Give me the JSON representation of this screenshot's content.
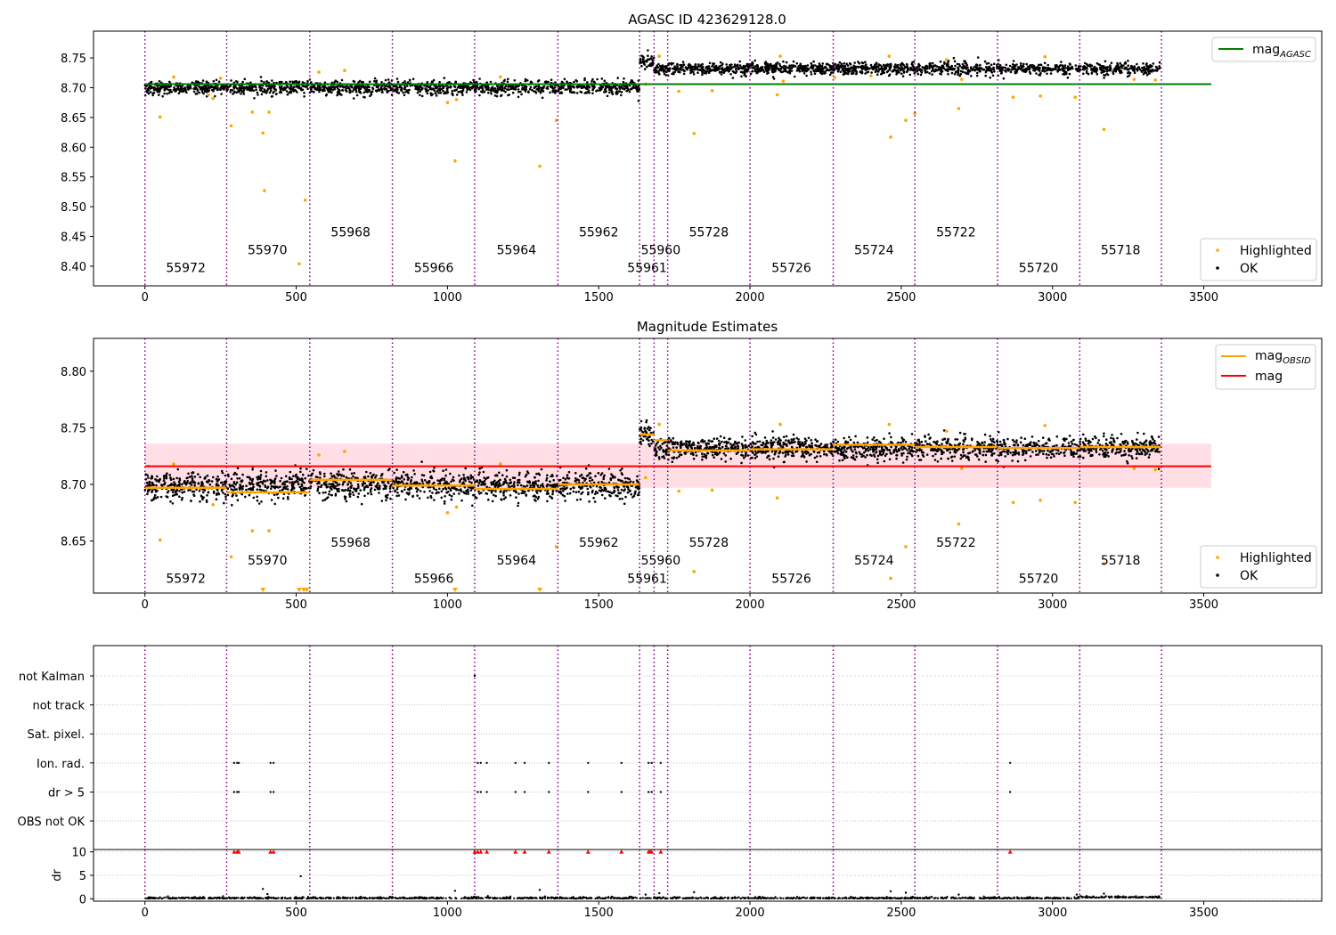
{
  "chart_data": [
    {
      "type": "scatter",
      "title": "AGASC ID 423629128.0",
      "xlim": [
        -170,
        3890
      ],
      "ylim": [
        8.367,
        8.795
      ],
      "x_ticks": [
        0,
        500,
        1000,
        1500,
        2000,
        2500,
        3000,
        3500
      ],
      "y_ticks": [
        8.4,
        8.45,
        8.5,
        8.55,
        8.6,
        8.65,
        8.7,
        8.75
      ],
      "grid": false,
      "legend_top": {
        "position": "top-right",
        "entries": [
          {
            "name": "mag",
            "subscript": "AGASC",
            "color": "#008000"
          }
        ]
      },
      "legend_bottom": {
        "position": "bottom-right",
        "entries": [
          {
            "name": "Highlighted",
            "color": "#FFA500"
          },
          {
            "name": "OK",
            "color": "#000000"
          }
        ]
      },
      "mag_agasc": {
        "value": 8.706,
        "x_range": [
          0,
          3525
        ],
        "color": "#008000"
      },
      "obsid_boundaries": [
        0,
        270,
        545,
        818,
        1090,
        1365,
        1635,
        1683,
        1728,
        2000,
        2275,
        2545,
        2818,
        3090,
        3360
      ],
      "obsids": [
        {
          "label": "55972",
          "x": 135,
          "y": 8.39,
          "level": 3
        },
        {
          "label": "55970",
          "x": 405,
          "y": 8.42,
          "level": 2
        },
        {
          "label": "55968",
          "x": 680,
          "y": 8.45,
          "level": 1
        },
        {
          "label": "55966",
          "x": 955,
          "y": 8.39,
          "level": 3
        },
        {
          "label": "55964",
          "x": 1228,
          "y": 8.42,
          "level": 2
        },
        {
          "label": "55962",
          "x": 1500,
          "y": 8.45,
          "level": 1
        },
        {
          "label": "55961",
          "x": 1660,
          "y": 8.39,
          "level": 3
        },
        {
          "label": "55960",
          "x": 1705,
          "y": 8.42,
          "level": 2
        },
        {
          "label": "55728",
          "x": 1864,
          "y": 8.45,
          "level": 1
        },
        {
          "label": "55726",
          "x": 2137,
          "y": 8.39,
          "level": 3
        },
        {
          "label": "55724",
          "x": 2410,
          "y": 8.42,
          "level": 2
        },
        {
          "label": "55722",
          "x": 2681,
          "y": 8.45,
          "level": 1
        },
        {
          "label": "55720",
          "x": 2954,
          "y": 8.39,
          "level": 3
        },
        {
          "label": "55718",
          "x": 3225,
          "y": 8.42,
          "level": 2
        }
      ],
      "segment_levels": [
        {
          "x_range": [
            0,
            1635
          ],
          "mean": 8.7,
          "scatter": 0.006
        },
        {
          "x_range": [
            1635,
            1683
          ],
          "mean": 8.744,
          "scatter": 0.006
        },
        {
          "x_range": [
            1683,
            3355
          ],
          "mean": 8.732,
          "scatter": 0.005
        }
      ],
      "highlighted_points": [
        [
          50,
          8.651
        ],
        [
          95,
          8.718
        ],
        [
          210,
          8.688
        ],
        [
          225,
          8.682
        ],
        [
          250,
          8.716
        ],
        [
          285,
          8.636
        ],
        [
          355,
          8.659
        ],
        [
          390,
          8.624
        ],
        [
          395,
          8.527
        ],
        [
          410,
          8.659
        ],
        [
          510,
          8.404
        ],
        [
          530,
          8.511
        ],
        [
          575,
          8.726
        ],
        [
          660,
          8.729
        ],
        [
          1000,
          8.675
        ],
        [
          1025,
          8.577
        ],
        [
          1030,
          8.68
        ],
        [
          1175,
          8.718
        ],
        [
          1305,
          8.568
        ],
        [
          1360,
          8.645
        ],
        [
          1655,
          8.706
        ],
        [
          1700,
          8.753
        ],
        [
          1765,
          8.694
        ],
        [
          1815,
          8.623
        ],
        [
          1875,
          8.695
        ],
        [
          2090,
          8.688
        ],
        [
          2100,
          8.753
        ],
        [
          2110,
          8.711
        ],
        [
          2280,
          8.717
        ],
        [
          2400,
          8.72
        ],
        [
          2460,
          8.753
        ],
        [
          2465,
          8.617
        ],
        [
          2515,
          8.645
        ],
        [
          2545,
          8.657
        ],
        [
          2650,
          8.747
        ],
        [
          2690,
          8.665
        ],
        [
          2700,
          8.714
        ],
        [
          2870,
          8.684
        ],
        [
          2960,
          8.686
        ],
        [
          2975,
          8.752
        ],
        [
          3075,
          8.684
        ],
        [
          3170,
          8.63
        ],
        [
          3270,
          8.714
        ],
        [
          3340,
          8.713
        ]
      ]
    },
    {
      "type": "scatter",
      "title": "Magnitude Estimates",
      "xlim": [
        -170,
        3890
      ],
      "ylim": [
        8.604,
        8.829
      ],
      "x_ticks": [
        0,
        500,
        1000,
        1500,
        2000,
        2500,
        3000,
        3500
      ],
      "y_ticks": [
        8.65,
        8.7,
        8.75,
        8.8
      ],
      "grid": false,
      "legend_top": {
        "position": "top-right",
        "entries": [
          {
            "name": "mag",
            "subscript": "OBSID",
            "color": "#FFA500"
          },
          {
            "name": "mag",
            "color": "#FF0000"
          }
        ]
      },
      "legend_bottom": {
        "position": "bottom-right",
        "entries": [
          {
            "name": "Highlighted",
            "color": "#FFA500"
          },
          {
            "name": "OK",
            "color": "#000000"
          }
        ]
      },
      "mag": {
        "value": 8.716,
        "band": [
          8.697,
          8.736
        ],
        "x_range": [
          0,
          3525
        ],
        "color": "#FF0000"
      },
      "mag_obsid": [
        {
          "x_range": [
            0,
            270
          ],
          "value": 8.697
        },
        {
          "x_range": [
            270,
            545
          ],
          "value": 8.693
        },
        {
          "x_range": [
            545,
            818
          ],
          "value": 8.704
        },
        {
          "x_range": [
            818,
            1090
          ],
          "value": 8.699
        },
        {
          "x_range": [
            1090,
            1365
          ],
          "value": 8.696
        },
        {
          "x_range": [
            1365,
            1635
          ],
          "value": 8.7
        },
        {
          "x_range": [
            1635,
            1683
          ],
          "value": 8.744
        },
        {
          "x_range": [
            1683,
            1728
          ],
          "value": 8.739
        },
        {
          "x_range": [
            1728,
            2000
          ],
          "value": 8.73
        },
        {
          "x_range": [
            2000,
            2275
          ],
          "value": 8.731
        },
        {
          "x_range": [
            2275,
            2545
          ],
          "value": 8.735
        },
        {
          "x_range": [
            2545,
            2818
          ],
          "value": 8.733
        },
        {
          "x_range": [
            2818,
            3090
          ],
          "value": 8.732
        },
        {
          "x_range": [
            3090,
            3360
          ],
          "value": 8.733
        }
      ],
      "obsid_boundaries": [
        0,
        270,
        545,
        818,
        1090,
        1365,
        1635,
        1683,
        1728,
        2000,
        2275,
        2545,
        2818,
        3090,
        3360
      ],
      "obsids": [
        {
          "label": "55972",
          "x": 135,
          "y": 8.613
        },
        {
          "label": "55970",
          "x": 405,
          "y": 8.629
        },
        {
          "label": "55968",
          "x": 680,
          "y": 8.645
        },
        {
          "label": "55966",
          "x": 955,
          "y": 8.613
        },
        {
          "label": "55964",
          "x": 1228,
          "y": 8.629
        },
        {
          "label": "55962",
          "x": 1500,
          "y": 8.645
        },
        {
          "label": "55961",
          "x": 1660,
          "y": 8.613
        },
        {
          "label": "55960",
          "x": 1705,
          "y": 8.629
        },
        {
          "label": "55728",
          "x": 1864,
          "y": 8.645
        },
        {
          "label": "55726",
          "x": 2137,
          "y": 8.613
        },
        {
          "label": "55724",
          "x": 2410,
          "y": 8.629
        },
        {
          "label": "55722",
          "x": 2681,
          "y": 8.645
        },
        {
          "label": "55720",
          "x": 2954,
          "y": 8.613
        },
        {
          "label": "55718",
          "x": 3225,
          "y": 8.629
        }
      ],
      "segment_levels": [
        {
          "x_range": [
            0,
            1635
          ],
          "mean": 8.699,
          "scatter": 0.006
        },
        {
          "x_range": [
            1635,
            1683
          ],
          "mean": 8.744,
          "scatter": 0.006
        },
        {
          "x_range": [
            1683,
            3355
          ],
          "mean": 8.732,
          "scatter": 0.005
        }
      ],
      "highlighted_points": [
        [
          50,
          8.651
        ],
        [
          95,
          8.718
        ],
        [
          225,
          8.682
        ],
        [
          285,
          8.636
        ],
        [
          355,
          8.659
        ],
        [
          410,
          8.659
        ],
        [
          575,
          8.726
        ],
        [
          660,
          8.729
        ],
        [
          1000,
          8.675
        ],
        [
          1030,
          8.68
        ],
        [
          1175,
          8.718
        ],
        [
          1360,
          8.645
        ],
        [
          1655,
          8.706
        ],
        [
          1700,
          8.753
        ],
        [
          1765,
          8.694
        ],
        [
          1815,
          8.623
        ],
        [
          1875,
          8.695
        ],
        [
          2090,
          8.688
        ],
        [
          2100,
          8.753
        ],
        [
          2460,
          8.753
        ],
        [
          2465,
          8.617
        ],
        [
          2515,
          8.645
        ],
        [
          2650,
          8.747
        ],
        [
          2690,
          8.665
        ],
        [
          2700,
          8.714
        ],
        [
          2870,
          8.684
        ],
        [
          2960,
          8.686
        ],
        [
          2975,
          8.752
        ],
        [
          3075,
          8.684
        ],
        [
          3170,
          8.63
        ],
        [
          3270,
          8.714
        ],
        [
          3340,
          8.713
        ]
      ],
      "below_range_markers": [
        390,
        510,
        525,
        535,
        1025,
        1305
      ]
    },
    {
      "type": "scatter",
      "title": "",
      "xlim": [
        -170,
        3890
      ],
      "x_ticks": [
        0,
        500,
        1000,
        1500,
        2000,
        2500,
        3000,
        3500
      ],
      "flag_rows": [
        "not Kalman",
        "not track",
        "Sat. pixel.",
        "Ion. rad.",
        "dr > 5",
        "OBS not OK"
      ],
      "dr_ylim": [
        -0.5,
        10.5
      ],
      "dr_ticks": [
        0,
        5,
        10
      ],
      "dr_ylabel": "dr",
      "grid": "dotted",
      "obsid_boundaries": [
        0,
        270,
        545,
        818,
        1090,
        1365,
        1635,
        1683,
        1728,
        2000,
        2275,
        2545,
        2818,
        3090,
        3360
      ],
      "flag_points": [
        {
          "row": "not Kalman",
          "x": [
            1090
          ]
        },
        {
          "row": "Ion. rad.",
          "x": [
            295,
            305,
            310,
            415,
            425,
            1100,
            1110,
            1130,
            1225,
            1255,
            1335,
            1465,
            1575,
            1665,
            1675,
            1705,
            2860
          ]
        },
        {
          "row": "dr > 5",
          "x": [
            295,
            305,
            310,
            415,
            425,
            1100,
            1110,
            1130,
            1225,
            1255,
            1335,
            1465,
            1575,
            1665,
            1675,
            1705,
            2860
          ]
        }
      ],
      "dr_capped_points": [
        295,
        305,
        310,
        415,
        425,
        1090,
        1100,
        1110,
        1130,
        1225,
        1255,
        1335,
        1465,
        1575,
        1665,
        1670,
        1675,
        1705,
        2860
      ],
      "dr_outliers": [
        [
          390,
          2.1
        ],
        [
          405,
          1.0
        ],
        [
          515,
          4.8
        ],
        [
          1025,
          1.7
        ],
        [
          1305,
          1.9
        ],
        [
          1655,
          0.9
        ],
        [
          1700,
          1.2
        ],
        [
          1815,
          1.4
        ],
        [
          2465,
          1.6
        ],
        [
          2515,
          1.3
        ],
        [
          2690,
          0.9
        ],
        [
          3080,
          0.9
        ],
        [
          3170,
          1.1
        ]
      ]
    }
  ]
}
